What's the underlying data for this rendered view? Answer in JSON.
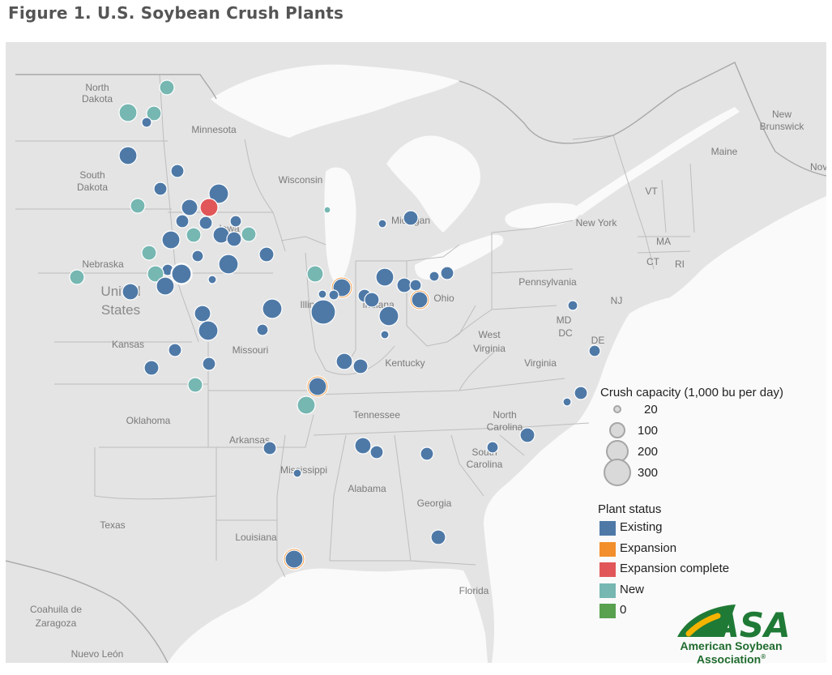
{
  "title": "Figure 1. U.S. Soybean Crush Plants",
  "colors": {
    "existing": "#4e79a7",
    "expansion": "#f28e2b",
    "expansion_complete": "#e15759",
    "new": "#76b7b2",
    "zero": "#59a14f",
    "land": "#e4e4e4",
    "water": "#fafafa",
    "border": "#bdbdbd"
  },
  "map_labels": {
    "north_dakota": "North Dakota",
    "minnesota": "Minnesota",
    "south_dakota": "South Dakota",
    "wisconsin": "Wisconsin",
    "michigan": "Michigan",
    "iowa": "Iowa",
    "nebraska": "Nebraska",
    "united_states": "United States",
    "illinois": "Illinois",
    "indiana": "Indiana",
    "ohio": "Ohio",
    "pennsylvania": "Pennsylvania",
    "new_york": "New York",
    "maine": "Maine",
    "new_brunswick": "New Brunswick",
    "nova": "Nova",
    "vt": "VT",
    "ma": "MA",
    "ct": "CT",
    "ri": "RI",
    "nj": "NJ",
    "md": "MD",
    "dc": "DC",
    "de": "DE",
    "west_virginia": "West Virginia",
    "virginia": "Virginia",
    "kansas": "Kansas",
    "missouri": "Missouri",
    "kentucky": "Kentucky",
    "tennessee": "Tennessee",
    "north_carolina": "North Carolina",
    "south_carolina": "South Carolina",
    "oklahoma": "Oklahoma",
    "arkansas": "Arkansas",
    "mississippi": "Mississippi",
    "alabama": "Alabama",
    "georgia": "Georgia",
    "texas": "Texas",
    "louisiana": "Louisiana",
    "florida": "Florida",
    "coahuila": "Coahuila de Zaragoza",
    "nuevo_leon": "Nuevo León"
  },
  "legend_size": {
    "title": "Crush capacity (1,000 bu per day)",
    "items": [
      {
        "label": "20",
        "value": 20
      },
      {
        "label": "100",
        "value": 100
      },
      {
        "label": "200",
        "value": 200
      },
      {
        "label": "300",
        "value": 300
      }
    ]
  },
  "legend_status": {
    "title": "Plant status",
    "items": [
      {
        "label": "Existing",
        "key": "existing"
      },
      {
        "label": "Expansion",
        "key": "expansion"
      },
      {
        "label": "Expansion complete",
        "key": "expansion_complete"
      },
      {
        "label": "New",
        "key": "new"
      },
      {
        "label": "0",
        "key": "zero"
      }
    ]
  },
  "logo": {
    "text": "ASA",
    "line1": "American Soybean",
    "line2": "Association",
    "mark": "®"
  }
}
